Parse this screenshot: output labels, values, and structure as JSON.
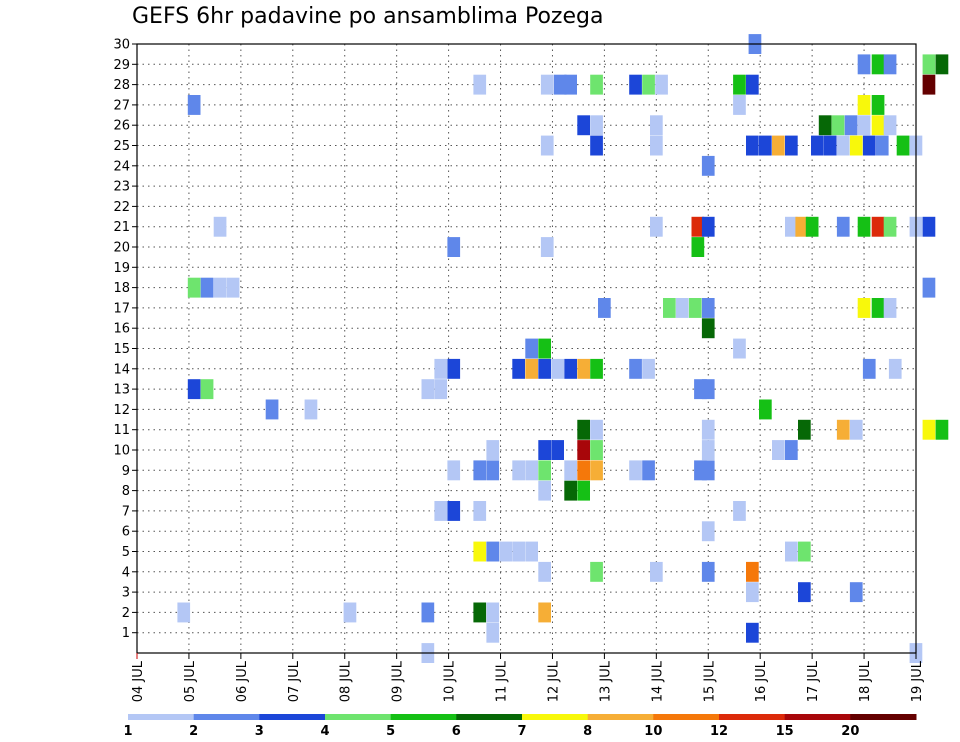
{
  "chart_data": {
    "type": "heatmap",
    "title": "GEFS 6hr padavine po ansamblima Pozega",
    "xlabel": "",
    "ylabel": "",
    "x_ticks": [
      "04 JUL",
      "05 JUL",
      "06 JUL",
      "07 JUL",
      "08 JUL",
      "09 JUL",
      "10 JUL",
      "11 JUL",
      "12 JUL",
      "13 JUL",
      "14 JUL",
      "15 JUL",
      "16 JUL",
      "17 JUL",
      "18 JUL",
      "19 JUL"
    ],
    "y_ticks": [
      "1",
      "2",
      "3",
      "4",
      "5",
      "6",
      "7",
      "8",
      "9",
      "10",
      "11",
      "12",
      "13",
      "14",
      "15",
      "16",
      "17",
      "18",
      "19",
      "20",
      "21",
      "22",
      "23",
      "24",
      "25",
      "26",
      "27",
      "28",
      "29",
      "30"
    ],
    "xlim": [
      4,
      19
    ],
    "ylim": [
      0,
      30
    ],
    "grid": true,
    "colorbar": {
      "labels": [
        "1",
        "2",
        "3",
        "4",
        "5",
        "6",
        "7",
        "8",
        "10",
        "12",
        "15",
        "20"
      ],
      "colors": [
        "#b4c7f5",
        "#5f87ea",
        "#1c46d8",
        "#6ee46e",
        "#15c015",
        "#066806",
        "#f8f80b",
        "#f6ae36",
        "#f5780a",
        "#dc2a0a",
        "#a8060a",
        "#640000"
      ]
    },
    "points": [
      [
        15.9,
        30,
        1
      ],
      [
        18.0,
        29,
        1
      ],
      [
        18.27,
        29,
        4
      ],
      [
        18.5,
        29,
        1
      ],
      [
        19.25,
        29,
        3
      ],
      [
        19.5,
        29,
        5
      ],
      [
        10.6,
        28,
        0
      ],
      [
        11.9,
        28,
        0
      ],
      [
        12.15,
        28,
        1
      ],
      [
        12.35,
        28,
        1
      ],
      [
        12.85,
        28,
        3
      ],
      [
        13.6,
        28,
        2
      ],
      [
        13.85,
        28,
        3
      ],
      [
        14.1,
        28,
        0
      ],
      [
        15.6,
        28,
        4
      ],
      [
        15.85,
        28,
        2
      ],
      [
        19.25,
        28,
        11
      ],
      [
        5.1,
        27,
        1
      ],
      [
        15.6,
        27,
        0
      ],
      [
        18.0,
        27,
        6
      ],
      [
        18.27,
        27,
        4
      ],
      [
        12.6,
        26,
        2
      ],
      [
        12.85,
        26,
        0
      ],
      [
        14.0,
        26,
        0
      ],
      [
        17.25,
        26,
        5
      ],
      [
        17.5,
        26,
        3
      ],
      [
        17.75,
        26,
        1
      ],
      [
        18.0,
        26,
        0
      ],
      [
        18.27,
        26,
        6
      ],
      [
        18.5,
        26,
        0
      ],
      [
        11.9,
        25,
        0
      ],
      [
        12.85,
        25,
        2
      ],
      [
        14.0,
        25,
        0
      ],
      [
        15.85,
        25,
        2
      ],
      [
        16.1,
        25,
        2
      ],
      [
        16.35,
        25,
        7
      ],
      [
        16.6,
        25,
        2
      ],
      [
        17.1,
        25,
        2
      ],
      [
        17.35,
        25,
        2
      ],
      [
        17.6,
        25,
        0
      ],
      [
        17.85,
        25,
        6
      ],
      [
        18.1,
        25,
        2
      ],
      [
        18.35,
        25,
        1
      ],
      [
        18.75,
        25,
        4
      ],
      [
        19.0,
        25,
        0
      ],
      [
        15.0,
        24,
        1
      ],
      [
        5.6,
        21,
        0
      ],
      [
        14.0,
        21,
        0
      ],
      [
        14.8,
        21,
        9
      ],
      [
        15.0,
        21,
        2
      ],
      [
        16.6,
        21,
        0
      ],
      [
        16.8,
        21,
        7
      ],
      [
        17.0,
        21,
        4
      ],
      [
        17.6,
        21,
        1
      ],
      [
        18.0,
        21,
        4
      ],
      [
        18.27,
        21,
        9
      ],
      [
        18.5,
        21,
        3
      ],
      [
        19.0,
        21,
        0
      ],
      [
        19.25,
        21,
        2
      ],
      [
        10.1,
        20,
        1
      ],
      [
        11.9,
        20,
        0
      ],
      [
        14.8,
        20,
        4
      ],
      [
        5.1,
        18,
        3
      ],
      [
        5.35,
        18,
        1
      ],
      [
        5.6,
        18,
        0
      ],
      [
        5.85,
        18,
        0
      ],
      [
        19.25,
        18,
        1
      ],
      [
        13.0,
        17,
        1
      ],
      [
        14.25,
        17,
        3
      ],
      [
        14.5,
        17,
        0
      ],
      [
        14.75,
        17,
        3
      ],
      [
        15.0,
        17,
        1
      ],
      [
        18.0,
        17,
        6
      ],
      [
        18.27,
        17,
        4
      ],
      [
        18.5,
        17,
        0
      ],
      [
        15.0,
        16,
        5
      ],
      [
        11.6,
        15,
        1
      ],
      [
        11.85,
        15,
        4
      ],
      [
        15.6,
        15,
        0
      ],
      [
        9.85,
        14,
        0
      ],
      [
        10.1,
        14,
        2
      ],
      [
        11.35,
        14,
        2
      ],
      [
        11.6,
        14,
        7
      ],
      [
        11.85,
        14,
        2
      ],
      [
        12.1,
        14,
        0
      ],
      [
        12.35,
        14,
        2
      ],
      [
        12.6,
        14,
        7
      ],
      [
        12.85,
        14,
        4
      ],
      [
        13.6,
        14,
        1
      ],
      [
        13.85,
        14,
        0
      ],
      [
        18.1,
        14,
        1
      ],
      [
        18.6,
        14,
        0
      ],
      [
        5.1,
        13,
        2
      ],
      [
        5.35,
        13,
        3
      ],
      [
        9.6,
        13,
        0
      ],
      [
        9.85,
        13,
        0
      ],
      [
        14.85,
        13,
        1
      ],
      [
        15.0,
        13,
        1
      ],
      [
        6.6,
        12,
        1
      ],
      [
        7.35,
        12,
        0
      ],
      [
        16.1,
        12,
        4
      ],
      [
        12.6,
        11,
        5
      ],
      [
        12.85,
        11,
        0
      ],
      [
        15.0,
        11,
        0
      ],
      [
        16.85,
        11,
        5
      ],
      [
        17.6,
        11,
        7
      ],
      [
        17.85,
        11,
        0
      ],
      [
        19.25,
        11,
        6
      ],
      [
        19.5,
        11,
        4
      ],
      [
        10.85,
        10,
        0
      ],
      [
        11.85,
        10,
        2
      ],
      [
        12.1,
        10,
        2
      ],
      [
        12.6,
        10,
        10
      ],
      [
        12.85,
        10,
        3
      ],
      [
        15.0,
        10,
        0
      ],
      [
        16.35,
        10,
        0
      ],
      [
        16.6,
        10,
        1
      ],
      [
        10.1,
        9,
        0
      ],
      [
        10.6,
        9,
        1
      ],
      [
        10.85,
        9,
        1
      ],
      [
        11.35,
        9,
        0
      ],
      [
        11.6,
        9,
        0
      ],
      [
        11.85,
        9,
        3
      ],
      [
        12.35,
        9,
        0
      ],
      [
        12.6,
        9,
        8
      ],
      [
        12.85,
        9,
        7
      ],
      [
        13.6,
        9,
        0
      ],
      [
        13.85,
        9,
        1
      ],
      [
        14.85,
        9,
        1
      ],
      [
        15.0,
        9,
        1
      ],
      [
        11.85,
        8,
        0
      ],
      [
        12.35,
        8,
        5
      ],
      [
        12.6,
        8,
        4
      ],
      [
        9.85,
        7,
        0
      ],
      [
        10.1,
        7,
        2
      ],
      [
        10.6,
        7,
        0
      ],
      [
        15.6,
        7,
        0
      ],
      [
        15.0,
        6,
        0
      ],
      [
        10.6,
        5,
        6
      ],
      [
        10.85,
        5,
        1
      ],
      [
        11.1,
        5,
        0
      ],
      [
        11.35,
        5,
        0
      ],
      [
        11.6,
        5,
        0
      ],
      [
        16.6,
        5,
        0
      ],
      [
        16.85,
        5,
        3
      ],
      [
        11.85,
        4,
        0
      ],
      [
        12.85,
        4,
        3
      ],
      [
        14.0,
        4,
        0
      ],
      [
        15.0,
        4,
        1
      ],
      [
        15.85,
        4,
        8
      ],
      [
        15.85,
        3,
        0
      ],
      [
        16.85,
        3,
        2
      ],
      [
        17.85,
        3,
        1
      ],
      [
        4.9,
        2,
        0
      ],
      [
        8.1,
        2,
        0
      ],
      [
        9.6,
        2,
        1
      ],
      [
        10.6,
        2,
        5
      ],
      [
        10.85,
        2,
        0
      ],
      [
        11.85,
        2,
        7
      ],
      [
        10.85,
        1,
        0
      ],
      [
        15.85,
        1,
        2
      ],
      [
        9.6,
        0,
        0
      ],
      [
        19.0,
        0,
        0
      ]
    ]
  }
}
